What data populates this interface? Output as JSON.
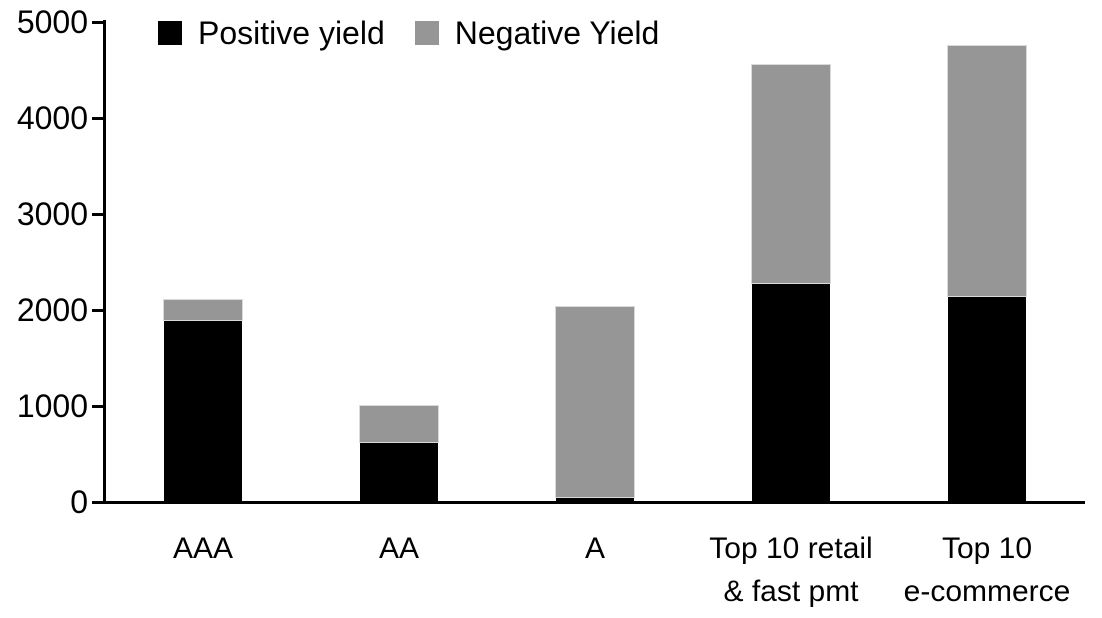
{
  "chart_data": {
    "type": "bar",
    "stacked": true,
    "title": "",
    "xlabel": "",
    "ylabel": "",
    "categories": [
      [
        "AAA"
      ],
      [
        "AA"
      ],
      [
        "A"
      ],
      [
        "Top 10 retail",
        "& fast pmt"
      ],
      [
        "Top 10",
        "e-commerce"
      ]
    ],
    "series": [
      {
        "name": "Positive yield",
        "color": "#000000",
        "values": [
          1900,
          620,
          50,
          2280,
          2150
        ]
      },
      {
        "name": "Negative Yield",
        "color": "#969696",
        "values": [
          200,
          380,
          1980,
          2270,
          2600
        ]
      }
    ],
    "totals": [
      2100,
      1000,
      2030,
      4550,
      4750
    ],
    "ylim": [
      0,
      5000
    ],
    "yticks": [
      0,
      1000,
      2000,
      3000,
      4000,
      5000
    ],
    "grid": false,
    "legend_position": "top-left-inside"
  },
  "colors": {
    "background": "#ffffff",
    "axis": "#000000",
    "positive_series": "#000000",
    "negative_series": "#969696",
    "text": "#000000"
  }
}
